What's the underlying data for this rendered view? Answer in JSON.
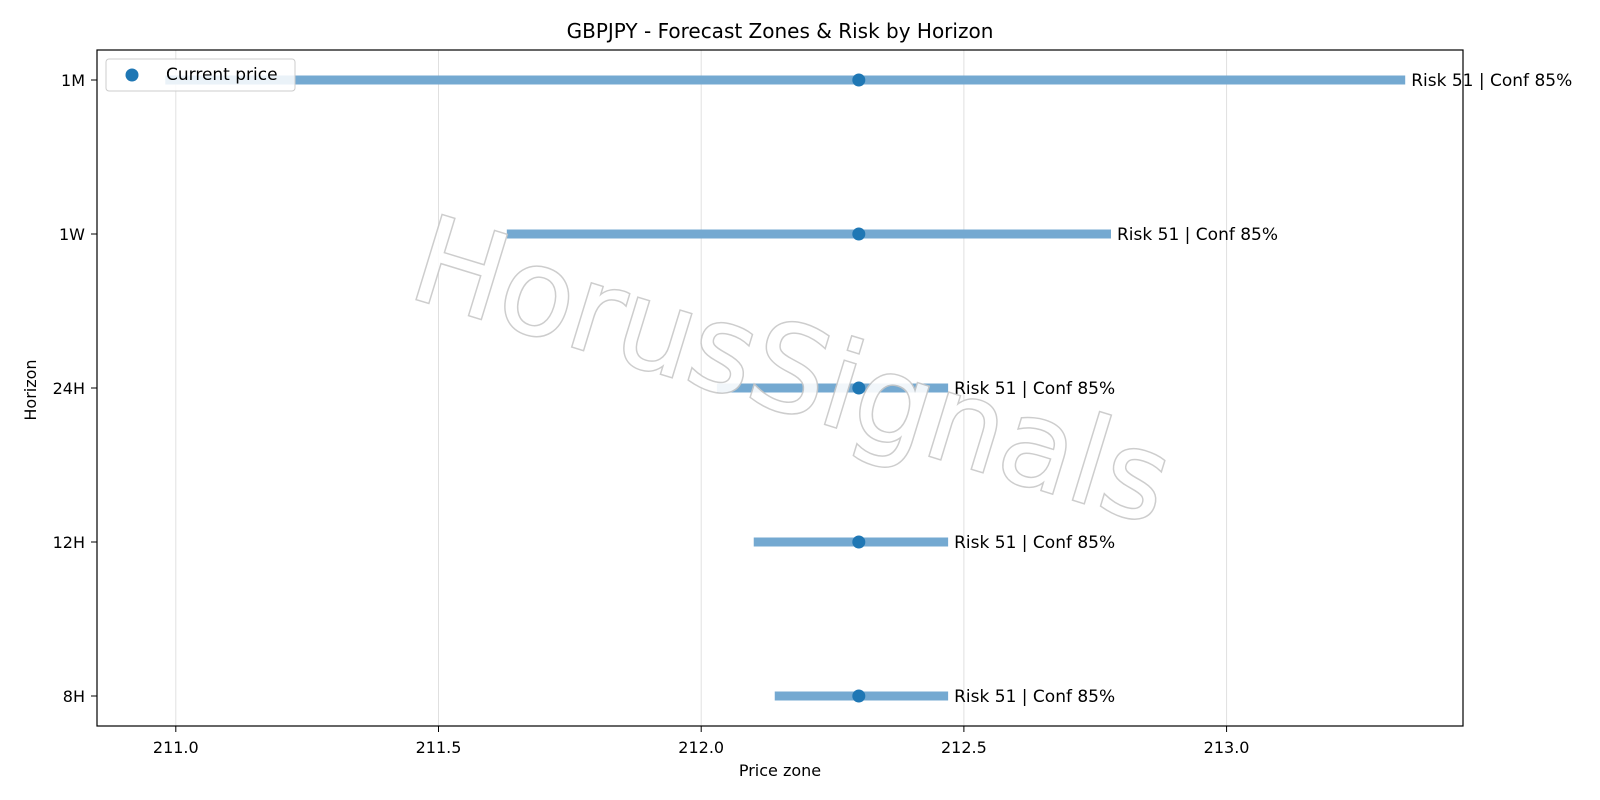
{
  "chart_data": {
    "type": "range",
    "title": "GBPJPY - Forecast Zones & Risk by Horizon",
    "xlabel": "Price zone",
    "ylabel": "Horizon",
    "xlim": [
      210.85,
      213.45
    ],
    "xticks": [
      "211.0",
      "211.5",
      "212.0",
      "212.5",
      "213.0"
    ],
    "xtick_values": [
      211.0,
      211.5,
      212.0,
      212.5,
      213.0
    ],
    "grid": "x",
    "legend": {
      "placement": "top-left",
      "label": "Current price"
    },
    "current_price": 212.3,
    "horizons": [
      {
        "label": "1M",
        "low": 210.98,
        "high": 213.34,
        "annotation": "Risk 51 | Conf 85%"
      },
      {
        "label": "1W",
        "low": 211.63,
        "high": 212.78,
        "annotation": "Risk 51 | Conf 85%"
      },
      {
        "label": "24H",
        "low": 212.03,
        "high": 212.47,
        "annotation": "Risk 51 | Conf 85%"
      },
      {
        "label": "12H",
        "low": 212.1,
        "high": 212.47,
        "annotation": "Risk 51 | Conf 85%"
      },
      {
        "label": "8H",
        "low": 212.14,
        "high": 212.47,
        "annotation": "Risk 51 | Conf 85%"
      }
    ],
    "colors": {
      "zone": "#74a9d1",
      "marker": "#1f77b4",
      "grid": "#e0e0e0"
    }
  },
  "watermark": {
    "text": "HorusSignals"
  }
}
